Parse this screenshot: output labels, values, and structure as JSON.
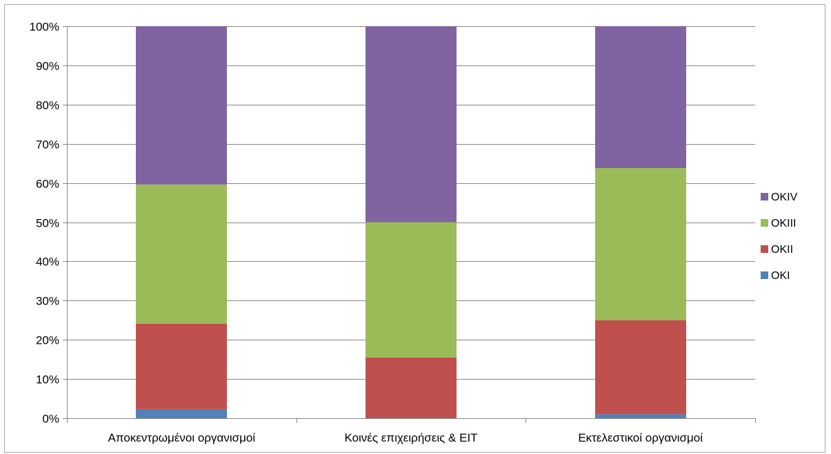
{
  "chart_data": {
    "type": "bar",
    "stacked": true,
    "percent_stacked": true,
    "categories": [
      "Αποκεντρωμένοι οργανισμοί",
      "Κοινές επιχειρήσεις & ΕΙΤ",
      "Εκτελεστικοί οργανισμοί"
    ],
    "series": [
      {
        "name": "OKI",
        "color": "#4f81bd",
        "values": [
          2.3,
          0,
          1.0
        ]
      },
      {
        "name": "OKII",
        "color": "#c0504d",
        "values": [
          21.8,
          15.5,
          24.0
        ]
      },
      {
        "name": "OKIII",
        "color": "#9bbb59",
        "values": [
          35.5,
          34.5,
          38.8
        ]
      },
      {
        "name": "OKIV",
        "color": "#8064a2",
        "values": [
          40.4,
          50.0,
          36.2
        ]
      }
    ],
    "y_ticks": [
      "0%",
      "10%",
      "20%",
      "30%",
      "40%",
      "50%",
      "60%",
      "70%",
      "80%",
      "90%",
      "100%"
    ],
    "ylim": [
      0,
      100
    ],
    "grid": true,
    "legend_position": "right",
    "legend_order": [
      "OKIV",
      "OKIII",
      "OKII",
      "OKI"
    ],
    "title": "",
    "xlabel": "",
    "ylabel": ""
  }
}
